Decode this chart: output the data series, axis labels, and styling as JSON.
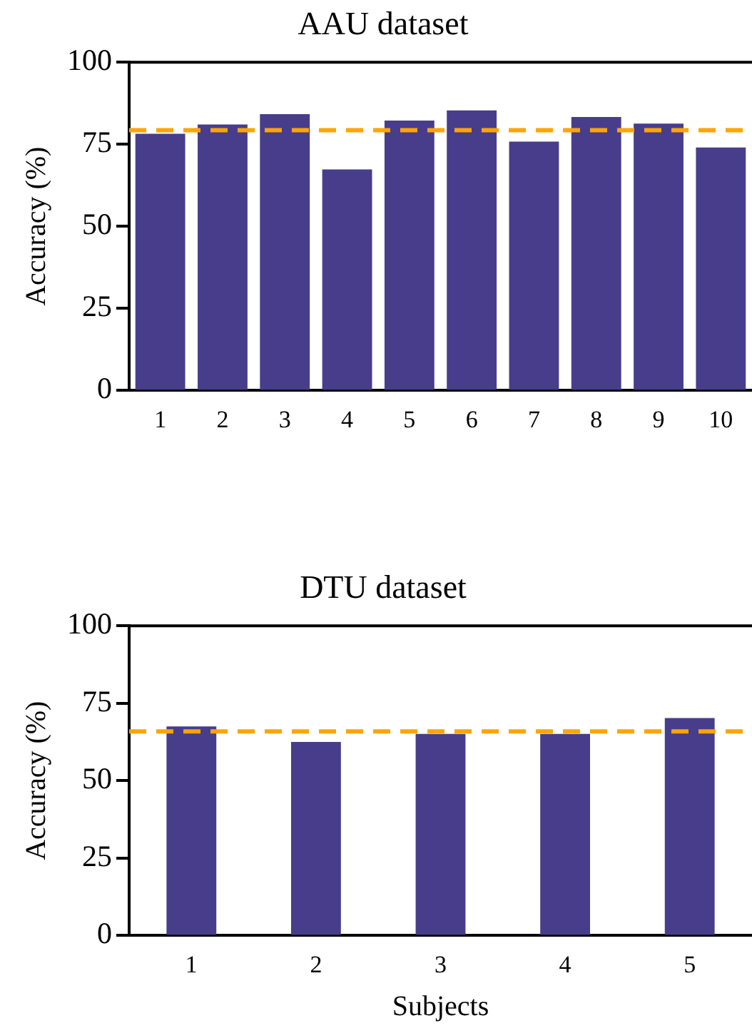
{
  "chart_data": [
    {
      "type": "bar",
      "title": "AAU dataset",
      "ylabel": "Accuracy (%)",
      "categories": [
        "1",
        "2",
        "3",
        "4",
        "5",
        "6",
        "7",
        "8",
        "9",
        "10"
      ],
      "values": [
        78.2,
        81.0,
        84.2,
        67.3,
        82.2,
        85.3,
        75.8,
        83.3,
        81.3,
        74.0
      ],
      "color": "#483d8b",
      "ylim": [
        0,
        100
      ],
      "yticks": [
        0,
        25,
        50,
        75,
        100
      ],
      "grid": false,
      "legend": false,
      "ref_lines": [
        {
          "axis": "y",
          "value": 79.3,
          "color": "#ffa500",
          "line_style": "dashed"
        }
      ]
    },
    {
      "type": "bar",
      "title": "DTU dataset",
      "xlabel": "Subjects",
      "ylabel": "Accuracy (%)",
      "categories": [
        "1",
        "2",
        "3",
        "4",
        "5"
      ],
      "values": [
        67.5,
        62.5,
        65.1,
        65.1,
        70.2
      ],
      "color": "#483d8b",
      "ylim": [
        0,
        100
      ],
      "yticks": [
        0,
        25,
        50,
        75,
        100
      ],
      "grid": false,
      "legend": false,
      "ref_lines": [
        {
          "axis": "y",
          "value": 65.9,
          "color": "#ffa500",
          "line_style": "dashed"
        }
      ]
    }
  ]
}
